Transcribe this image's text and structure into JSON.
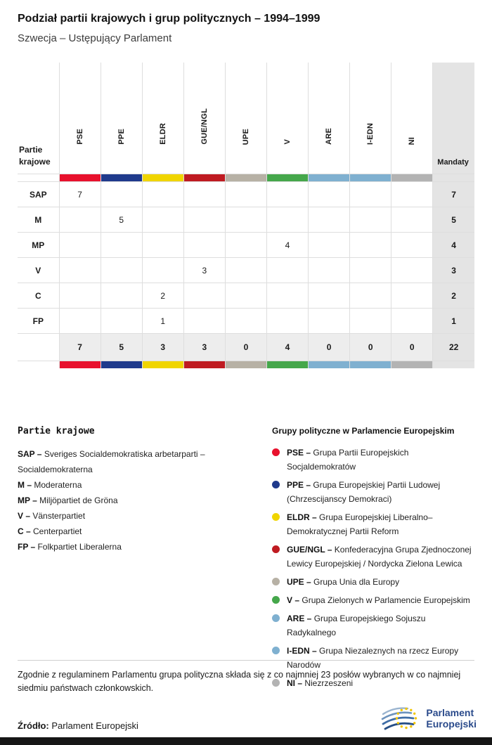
{
  "header": {
    "title": "Podział partii krajowych i grup politycznych – 1994–1999",
    "subtitle": "Szwecja – Ustępujący Parlament"
  },
  "table": {
    "row_header_lines": [
      "Partie",
      "krajowe"
    ],
    "mandaty_label": "Mandaty",
    "groups": [
      {
        "code": "PSE",
        "color": "#e8112d"
      },
      {
        "code": "PPE",
        "color": "#1f3a8c"
      },
      {
        "code": "ELDR",
        "color": "#f0d500"
      },
      {
        "code": "GUE/NGL",
        "color": "#bf1b21"
      },
      {
        "code": "UPE",
        "color": "#b7b1a5"
      },
      {
        "code": "V",
        "color": "#45a74b"
      },
      {
        "code": "ARE",
        "color": "#7fb0d0"
      },
      {
        "code": "I-EDN",
        "color": "#7fb0d0"
      },
      {
        "code": "NI",
        "color": "#b3b3b3"
      }
    ],
    "rows": [
      {
        "party": "SAP",
        "values": [
          "7",
          "",
          "",
          "",
          "",
          "",
          "",
          "",
          ""
        ],
        "total": "7"
      },
      {
        "party": "M",
        "values": [
          "",
          "5",
          "",
          "",
          "",
          "",
          "",
          "",
          ""
        ],
        "total": "5"
      },
      {
        "party": "MP",
        "values": [
          "",
          "",
          "",
          "",
          "",
          "4",
          "",
          "",
          ""
        ],
        "total": "4"
      },
      {
        "party": "V",
        "values": [
          "",
          "",
          "",
          "3",
          "",
          "",
          "",
          "",
          ""
        ],
        "total": "3"
      },
      {
        "party": "C",
        "values": [
          "",
          "",
          "2",
          "",
          "",
          "",
          "",
          "",
          ""
        ],
        "total": "2"
      },
      {
        "party": "FP",
        "values": [
          "",
          "",
          "1",
          "",
          "",
          "",
          "",
          "",
          ""
        ],
        "total": "1"
      }
    ],
    "totals": {
      "values": [
        "7",
        "5",
        "3",
        "3",
        "0",
        "4",
        "0",
        "0",
        "0"
      ],
      "total": "22"
    }
  },
  "chart_data": {
    "type": "table",
    "title": "Podział partii krajowych i grup politycznych – 1994–1999",
    "subtitle": "Szwecja – Ustępujący Parlament",
    "columns": [
      "PSE",
      "PPE",
      "ELDR",
      "GUE/NGL",
      "UPE",
      "V",
      "ARE",
      "I-EDN",
      "NI",
      "Mandaty"
    ],
    "rows": [
      {
        "party": "SAP",
        "PSE": 7,
        "Mandaty": 7
      },
      {
        "party": "M",
        "PPE": 5,
        "Mandaty": 5
      },
      {
        "party": "MP",
        "V": 4,
        "Mandaty": 4
      },
      {
        "party": "V",
        "GUE/NGL": 3,
        "Mandaty": 3
      },
      {
        "party": "C",
        "ELDR": 2,
        "Mandaty": 2
      },
      {
        "party": "FP",
        "ELDR": 1,
        "Mandaty": 1
      }
    ],
    "column_totals": {
      "PSE": 7,
      "PPE": 5,
      "ELDR": 3,
      "GUE/NGL": 3,
      "UPE": 0,
      "V": 4,
      "ARE": 0,
      "I-EDN": 0,
      "NI": 0,
      "Mandaty": 22
    }
  },
  "legend_parties": {
    "title": "Partie krajowe",
    "items": [
      {
        "abbr": "SAP",
        "name": "Sveriges Socialdemokratiska arbetarparti – Socialdemokraterna"
      },
      {
        "abbr": "M",
        "name": "Moderaterna"
      },
      {
        "abbr": "MP",
        "name": "Miljöpartiet de Gröna"
      },
      {
        "abbr": "V",
        "name": "Vänsterpartiet"
      },
      {
        "abbr": "C",
        "name": "Centerpartiet"
      },
      {
        "abbr": "FP",
        "name": "Folkpartiet Liberalerna"
      }
    ]
  },
  "legend_groups": {
    "title": "Grupy polityczne w Parlamencie Europejskim",
    "items": [
      {
        "abbr": "PSE",
        "name": "Grupa Partii Europejskich Socjaldemokratów",
        "color": "#e8112d"
      },
      {
        "abbr": "PPE",
        "name": "Grupa Europejskiej Partii Ludowej (Chrzescijanscy Demokraci)",
        "color": "#1f3a8c"
      },
      {
        "abbr": "ELDR",
        "name": "Grupa Europejskiej Liberalno–Demokratycznej Partii Reform",
        "color": "#f0d500"
      },
      {
        "abbr": "GUE/NGL",
        "name": "Konfederacyjna Grupa Zjednoczonej Lewicy Europejskiej / Nordycka Zielona Lewica",
        "color": "#bf1b21"
      },
      {
        "abbr": "UPE",
        "name": "Grupa Unia dla Europy",
        "color": "#b7b1a5"
      },
      {
        "abbr": "V",
        "name": "Grupa Zielonych w Parlamencie Europejskim",
        "color": "#45a74b"
      },
      {
        "abbr": "ARE",
        "name": "Grupa Europejskiego Sojuszu Radykalnego",
        "color": "#7fb0d0"
      },
      {
        "abbr": "I-EDN",
        "name": "Grupa Niezaleznych na rzecz Europy Narodów",
        "color": "#7fb0d0"
      },
      {
        "abbr": "NI",
        "name": "Niezrzeszeni",
        "color": "#b3b3b3"
      }
    ]
  },
  "footnote": "Zgodnie z regulaminem Parlamentu grupa polityczna składa się z co najmniej 23 posłów wybranych w co najmniej siedmiu państwach członkowskich.",
  "source": {
    "label": "Źródło:",
    "value": "Parlament Europejski"
  },
  "logo": {
    "line1": "Parlament",
    "line2": "Europejski"
  }
}
